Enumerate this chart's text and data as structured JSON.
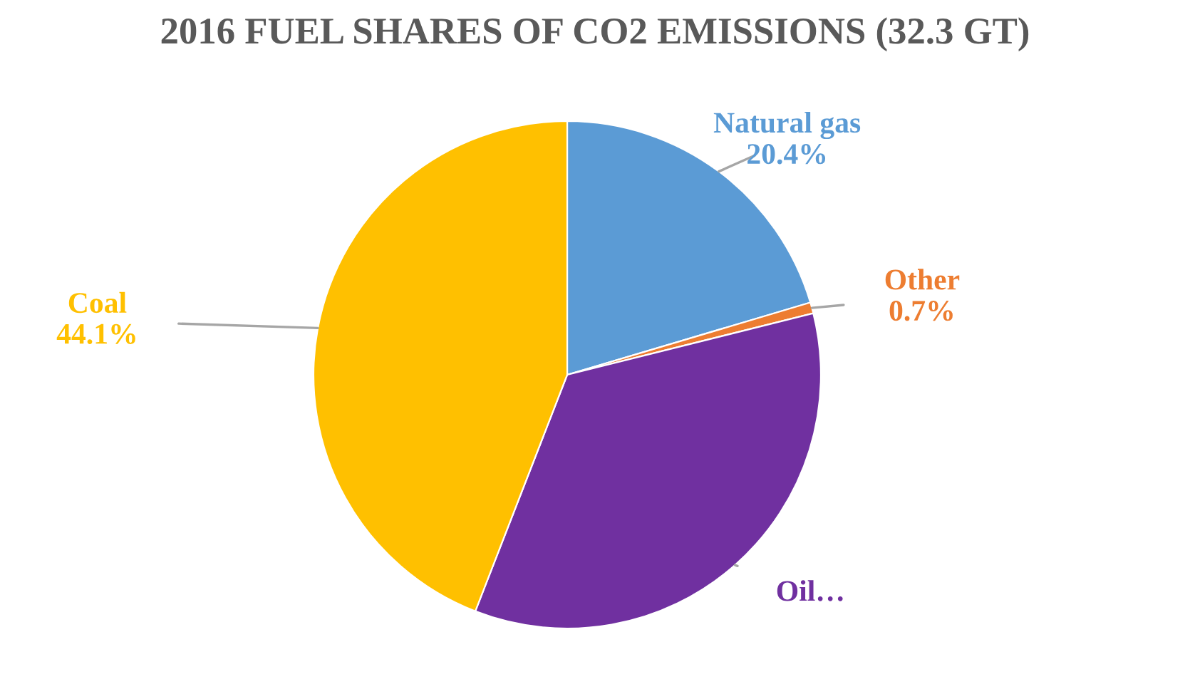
{
  "chart_data": {
    "type": "pie",
    "title": "2016 FUEL SHARES OF CO2 EMISSIONS (32.3 GT)",
    "categories": [
      "Natural gas",
      "Other",
      "Oil…",
      "Coal"
    ],
    "values": [
      20.4,
      0.7,
      34.8,
      44.1
    ],
    "value_labels": [
      "20.4%",
      "0.7%",
      null,
      "44.1%"
    ],
    "colors": [
      "#5b9bd5",
      "#ed7d31",
      "#7030a0",
      "#ffc000"
    ],
    "legend": false
  }
}
